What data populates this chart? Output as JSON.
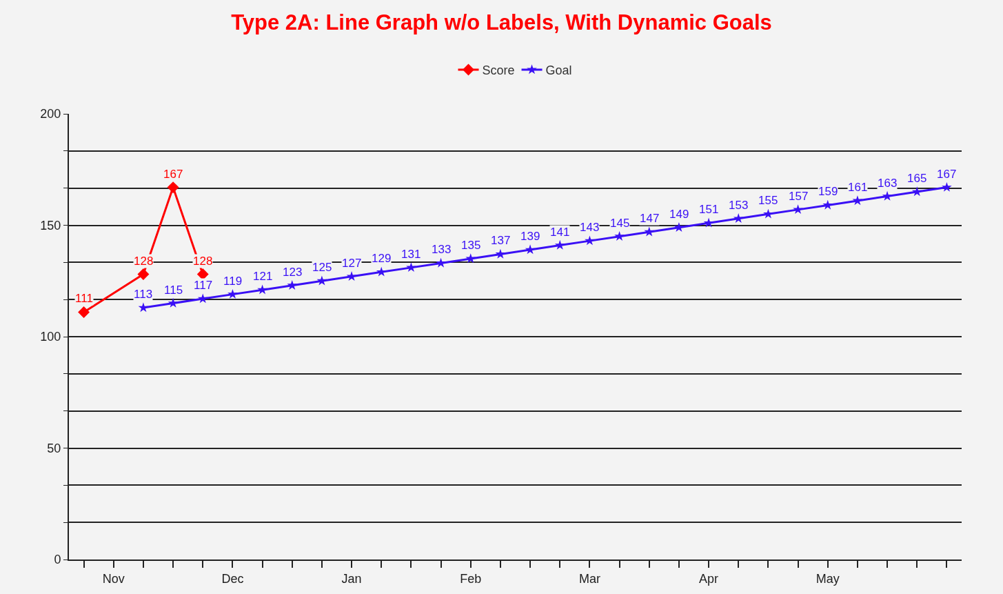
{
  "chart_data": {
    "type": "line",
    "title": "Type 2A: Line Graph w/o Labels, With Dynamic Goals",
    "categories": [
      null,
      "Nov",
      null,
      null,
      null,
      "Dec",
      null,
      null,
      null,
      "Jan",
      null,
      null,
      null,
      "Feb",
      null,
      null,
      null,
      "Mar",
      null,
      null,
      null,
      "Apr",
      null,
      null,
      null,
      "May",
      null,
      null,
      null,
      null
    ],
    "series": [
      {
        "name": "Score",
        "color": "#ff0000",
        "marker": "diamond",
        "values": [
          111,
          null,
          128,
          167,
          128,
          null,
          null,
          null,
          null,
          null,
          null,
          null,
          null,
          null,
          null,
          null,
          null,
          null,
          null,
          null,
          null,
          null,
          null,
          null,
          null,
          null,
          null,
          null,
          null,
          null
        ]
      },
      {
        "name": "Goal",
        "color": "#3a10f5",
        "marker": "star",
        "values": [
          null,
          null,
          113,
          115,
          117,
          119,
          121,
          123,
          125,
          127,
          129,
          131,
          133,
          135,
          137,
          139,
          141,
          143,
          145,
          147,
          149,
          151,
          153,
          155,
          157,
          159,
          161,
          163,
          165,
          167
        ]
      }
    ],
    "ylim": [
      0,
      200
    ],
    "yticks": [
      0,
      {
        "value": 16.7,
        "label": null
      },
      {
        "value": 33.3,
        "label": null
      },
      50,
      {
        "value": 66.7,
        "label": null
      },
      {
        "value": 83.3,
        "label": null
      },
      100,
      {
        "value": 116.7,
        "label": null
      },
      {
        "value": 133.3,
        "label": null
      },
      150,
      {
        "value": 166.7,
        "label": null
      },
      {
        "value": 183.3,
        "label": null
      },
      200
    ],
    "grid": "y",
    "legend": "top",
    "data_labels": true,
    "line_style": "solid"
  }
}
